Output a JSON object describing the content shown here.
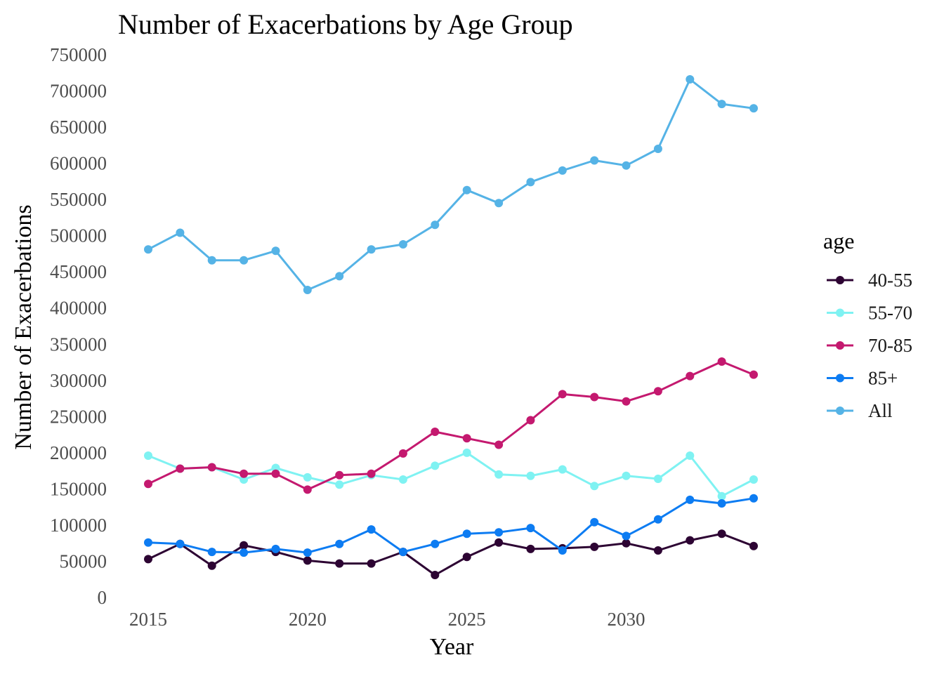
{
  "chart_data": {
    "type": "line",
    "title": "Number of Exacerbations by Age Group",
    "xlabel": "Year",
    "ylabel": "Number of Exacerbations",
    "legend_title": "age",
    "legend_position": "right",
    "grid": false,
    "xlim": [
      2014.2,
      2034.8
    ],
    "ylim": [
      0,
      750000
    ],
    "x_ticks": [
      2015,
      2020,
      2025,
      2030
    ],
    "y_ticks": [
      0,
      50000,
      100000,
      150000,
      200000,
      250000,
      300000,
      350000,
      400000,
      450000,
      500000,
      550000,
      600000,
      650000,
      700000,
      750000
    ],
    "x": [
      2015,
      2016,
      2017,
      2018,
      2019,
      2020,
      2021,
      2022,
      2023,
      2024,
      2025,
      2026,
      2027,
      2028,
      2029,
      2030,
      2031,
      2032,
      2033,
      2034
    ],
    "series": [
      {
        "name": "40-55",
        "color": "#2d0433",
        "values": [
          53000,
          74000,
          44000,
          72000,
          63000,
          51000,
          47000,
          47000,
          63000,
          31000,
          56000,
          76000,
          67000,
          68000,
          70000,
          75000,
          65000,
          79000,
          88000,
          71000
        ]
      },
      {
        "name": "55-70",
        "color": "#7ff2f2",
        "values": [
          196000,
          178000,
          180000,
          163000,
          179000,
          166000,
          156000,
          169000,
          163000,
          182000,
          200000,
          170000,
          168000,
          177000,
          154000,
          168000,
          164000,
          196000,
          140000,
          163000
        ]
      },
      {
        "name": "70-85",
        "color": "#c4196f",
        "values": [
          157000,
          178000,
          180000,
          171000,
          171000,
          149000,
          169000,
          171000,
          199000,
          229000,
          220000,
          211000,
          245000,
          281000,
          277000,
          271000,
          285000,
          306000,
          326000,
          308000
        ]
      },
      {
        "name": "85+",
        "color": "#0d7cf2",
        "values": [
          76000,
          74000,
          63000,
          62000,
          67000,
          62000,
          74000,
          94000,
          63000,
          74000,
          88000,
          90000,
          96000,
          65000,
          104000,
          85000,
          108000,
          135000,
          130000,
          137000
        ]
      },
      {
        "name": "All",
        "color": "#55b3e6",
        "values": [
          481000,
          504000,
          466000,
          466000,
          479000,
          425000,
          444000,
          481000,
          488000,
          515000,
          563000,
          545000,
          574000,
          590000,
          604000,
          597000,
          620000,
          716000,
          682000,
          676000
        ]
      }
    ]
  }
}
